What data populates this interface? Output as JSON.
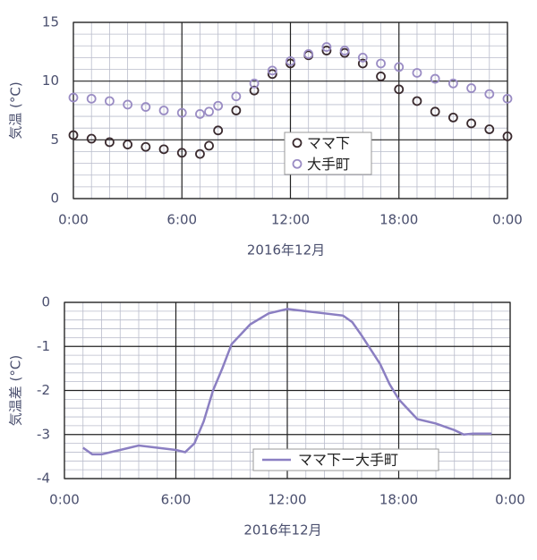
{
  "chart_data": [
    {
      "type": "scatter",
      "xlabel": "2016年12月",
      "ylabel": "気温 (°C)",
      "x": [
        0,
        1,
        2,
        3,
        4,
        5,
        6,
        7,
        7.5,
        8,
        9,
        10,
        11,
        12,
        13,
        14,
        15,
        16,
        17,
        18,
        19,
        20,
        21,
        22,
        23,
        24
      ],
      "xlim": [
        0,
        24
      ],
      "xticks": [
        {
          "value": 0,
          "label": "0:00"
        },
        {
          "value": 6,
          "label": "6:00"
        },
        {
          "value": 12,
          "label": "12:00"
        },
        {
          "value": 18,
          "label": "18:00"
        },
        {
          "value": 24,
          "label": "0:00"
        }
      ],
      "ylim": [
        0,
        15
      ],
      "yticks": [
        0,
        5,
        10,
        15
      ],
      "grid": true,
      "legend": "center",
      "series": [
        {
          "name": "ママ下",
          "color": "#3a2a2e",
          "values": [
            5.4,
            5.1,
            4.8,
            4.6,
            4.4,
            4.2,
            3.9,
            3.8,
            4.5,
            5.8,
            7.5,
            9.2,
            10.6,
            11.5,
            12.2,
            12.6,
            12.4,
            11.5,
            10.4,
            9.3,
            8.3,
            7.4,
            6.9,
            6.4,
            5.9,
            5.3
          ]
        },
        {
          "name": "大手町",
          "color": "#9a8cc4",
          "values": [
            8.6,
            8.5,
            8.3,
            8.0,
            7.8,
            7.5,
            7.3,
            7.2,
            7.4,
            7.9,
            8.7,
            9.8,
            10.9,
            11.7,
            12.3,
            12.9,
            12.6,
            12.0,
            11.5,
            11.2,
            10.7,
            10.2,
            9.8,
            9.4,
            8.9,
            8.5
          ]
        }
      ]
    },
    {
      "type": "line",
      "xlabel": "2016年12月",
      "ylabel": "気温差 (°C)",
      "x": [
        1,
        1.5,
        2,
        3,
        4,
        5,
        6,
        6.5,
        7,
        7.5,
        8,
        8.5,
        9,
        10,
        11,
        12,
        13,
        14,
        15,
        15.5,
        16,
        17,
        17.5,
        18,
        19,
        20,
        21,
        21.5,
        22,
        23
      ],
      "xlim": [
        0,
        24
      ],
      "xticks": [
        {
          "value": 0,
          "label": "0:00"
        },
        {
          "value": 6,
          "label": "6:00"
        },
        {
          "value": 12,
          "label": "12:00"
        },
        {
          "value": 18,
          "label": "18:00"
        },
        {
          "value": 24,
          "label": "0:00"
        }
      ],
      "ylim": [
        -4,
        0
      ],
      "yticks": [
        0,
        -1,
        -2,
        -3,
        -4
      ],
      "grid": true,
      "legend": "lower center",
      "series": [
        {
          "name": "ママ下ー大手町",
          "color": "#8b7fc2",
          "values": [
            -3.3,
            -3.45,
            -3.45,
            -3.35,
            -3.25,
            -3.3,
            -3.35,
            -3.4,
            -3.2,
            -2.7,
            -2.0,
            -1.5,
            -0.95,
            -0.5,
            -0.25,
            -0.15,
            -0.2,
            -0.25,
            -0.3,
            -0.45,
            -0.75,
            -1.4,
            -1.85,
            -2.2,
            -2.65,
            -2.75,
            -2.9,
            -3.0,
            -2.98,
            -2.98
          ]
        }
      ]
    }
  ]
}
